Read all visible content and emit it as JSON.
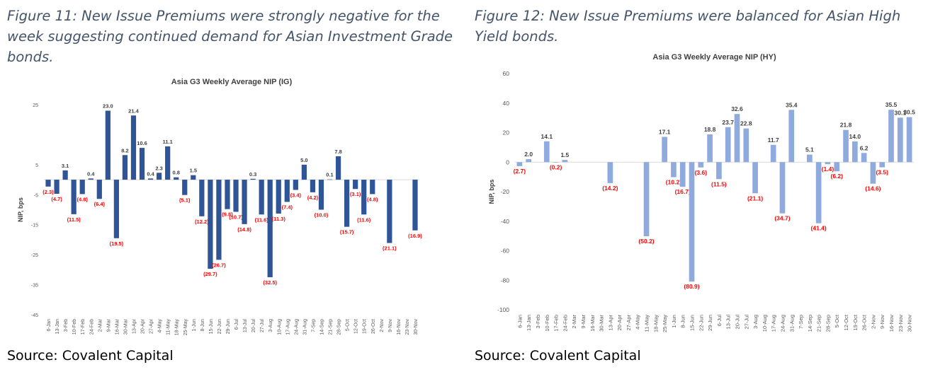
{
  "figures": [
    {
      "caption": "Figure 11: New Issue Premiums were strongly negative for the week suggesting continued demand for Asian Investment Grade bonds.",
      "source": "Source: Covalent Capital"
    },
    {
      "caption": "Figure 12: New Issue Premiums were balanced for Asian High Yield bonds.",
      "source": "Source: Covalent Capital"
    }
  ],
  "colors": {
    "ig_bar": "#2f5597",
    "hy_bar": "#8faadc",
    "neg_label": "#ff0000",
    "pos_label": "#404040"
  },
  "chart_data": [
    {
      "type": "bar",
      "title": "Asia G3 Weekly Average NIP (IG)",
      "ylabel": "NIP, bps",
      "ylim": [
        -45,
        25
      ],
      "yticks": [
        25,
        5,
        -5,
        -15,
        -25,
        -35,
        -45
      ],
      "grid": false,
      "categories": [
        "6-Jan",
        "13-Jan",
        "3-Feb",
        "10-Feb",
        "17-Feb",
        "24-Feb",
        "2-Mar",
        "9-Mar",
        "16-Mar",
        "30-Mar",
        "13-Apr",
        "20-Apr",
        "27-Apr",
        "4-May",
        "11-May",
        "18-May",
        "25-May",
        "1-Jun",
        "8-Jun",
        "15-Jun",
        "22-Jun",
        "29-Jun",
        "6-Jul",
        "13-Jul",
        "20-Jul",
        "27-Jul",
        "3-Aug",
        "10-Aug",
        "17-Aug",
        "24-Aug",
        "31-Aug",
        "7-Sep",
        "14-Sep",
        "21-Sep",
        "28-Sep",
        "5-Oct",
        "12-Oct",
        "19-Oct",
        "26-Oct",
        "2-Nov",
        "9-Nov",
        "16-Nov",
        "23-Nov",
        "30-Nov"
      ],
      "values": [
        -2.3,
        -4.7,
        3.1,
        -11.5,
        -4.8,
        0.4,
        -6.4,
        23.0,
        -19.5,
        8.2,
        21.4,
        10.6,
        0.4,
        2.3,
        11.1,
        0.8,
        -5.1,
        1.5,
        -12.2,
        -29.7,
        -26.7,
        -9.8,
        -10.7,
        -14.8,
        0.3,
        -11.6,
        -32.5,
        -11.3,
        -7.4,
        -3.4,
        5.0,
        -4.2,
        -10.0,
        0.1,
        7.8,
        -15.7,
        -3.1,
        -11.6,
        -4.8,
        null,
        -21.1,
        null,
        null,
        -16.9
      ],
      "labels": [
        "(2.3)",
        "(4.7)",
        "3.1",
        "(11.5)",
        "(4.8)",
        "0.4",
        "(6.4)",
        "23.0",
        "(19.5)",
        "8.2",
        "21.4",
        "10.6",
        "0.4",
        "2.3",
        "11.1",
        "0.8",
        "(5.1)",
        "1.5",
        "(12.2)",
        "(29.7)",
        "(26.7)",
        "(9.8)",
        "(10.7)",
        "(14.8)",
        "0.3",
        "(11.6)",
        "(32.5)",
        "(11.3)",
        "(7.4)",
        "(3.4)",
        "5.0",
        "(4.2)",
        "(10.0)",
        "0.1",
        "7.8",
        "(15.7)",
        "(3.1)",
        "(11.6)",
        "(4.8)",
        "",
        "(21.1)",
        "",
        "",
        "(16.9)"
      ]
    },
    {
      "type": "bar",
      "title": "Asia G3 Weekly Average NIP (HY)",
      "ylabel": "NIP, bps",
      "ylim": [
        -100,
        60
      ],
      "yticks": [
        60,
        40,
        20,
        0,
        -20,
        -40,
        -60,
        -80,
        -100
      ],
      "grid": false,
      "categories": [
        "6-Jan",
        "13-Jan",
        "3-Feb",
        "10-Feb",
        "17-Feb",
        "24-Feb",
        "2-Mar",
        "9-Mar",
        "16-Mar",
        "30-Mar",
        "13-Apr",
        "20-Apr",
        "27-Apr",
        "4-May",
        "11-May",
        "18-May",
        "25-May",
        "1-Jun",
        "8-Jun",
        "15-Jun",
        "22-Jun",
        "29-Jun",
        "6-Jul",
        "13-Jul",
        "20-Jul",
        "27-Jul",
        "3-Aug",
        "10-Aug",
        "17-Aug",
        "24-Aug",
        "31-Aug",
        "7-Sep",
        "14-Sep",
        "21-Sep",
        "28-Sep",
        "5-Oct",
        "12-Oct",
        "19-Oct",
        "26-Oct",
        "2-Nov",
        "9-Nov",
        "16-Nov",
        "23-Nov",
        "30-Nov"
      ],
      "values": [
        -2.7,
        2.0,
        null,
        14.1,
        -0.2,
        1.5,
        null,
        null,
        null,
        null,
        -14.2,
        null,
        null,
        null,
        -50.2,
        null,
        17.1,
        -10.2,
        -16.7,
        -80.9,
        -3.6,
        18.8,
        -11.5,
        23.7,
        32.6,
        22.8,
        -21.1,
        null,
        11.7,
        -34.7,
        35.4,
        null,
        5.1,
        -41.4,
        -1.4,
        -6.2,
        21.8,
        14.0,
        6.2,
        -14.6,
        -3.5,
        35.5,
        30.1,
        30.5
      ],
      "labels": [
        "(2.7)",
        "2.0",
        "",
        "14.1",
        "(0.2)",
        "1.5",
        "",
        "",
        "",
        "",
        "(14.2)",
        "",
        "",
        "",
        "(50.2)",
        "",
        "17.1",
        "(10.2)",
        "(16.7)",
        "(80.9)",
        "(3.6)",
        "18.8",
        "(11.5)",
        "23.7",
        "32.6",
        "22.8",
        "(21.1)",
        "",
        "11.7",
        "(34.7)",
        "35.4",
        "",
        "5.1",
        "(41.4)",
        "(1.4)",
        "(6.2)",
        "21.8",
        "14.0",
        "6.2",
        "(14.6)",
        "(3.5)",
        "35.5",
        "30.1",
        "30.5"
      ]
    }
  ]
}
